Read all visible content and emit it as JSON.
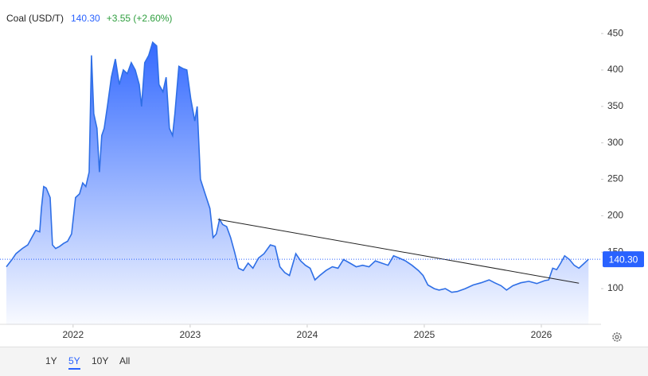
{
  "chart_data": {
    "type": "area",
    "title": "Coal (USD/T)",
    "change": "+3.55 (+2.60%)",
    "color": "#2f6fe6",
    "xlim": [
      2021.43,
      2026.51
    ],
    "xticks": [
      2022,
      2023,
      2024,
      2025,
      2026
    ],
    "ylim": [
      51,
      496
    ],
    "yticks": [
      100,
      150,
      200,
      250,
      300,
      350,
      400,
      450
    ],
    "x": [
      2021.43,
      2021.478,
      2021.512,
      2021.566,
      2021.613,
      2021.647,
      2021.681,
      2021.715,
      2021.729,
      2021.749,
      2021.77,
      2021.804,
      2021.824,
      2021.851,
      2021.885,
      2021.919,
      2021.953,
      2021.987,
      2022.021,
      2022.055,
      2022.082,
      2022.109,
      2022.137,
      2022.157,
      2022.177,
      2022.204,
      2022.225,
      2022.245,
      2022.266,
      2022.293,
      2022.327,
      2022.361,
      2022.395,
      2022.429,
      2022.463,
      2022.497,
      2022.531,
      2022.565,
      2022.585,
      2022.612,
      2022.646,
      2022.68,
      2022.714,
      2022.734,
      2022.768,
      2022.795,
      2022.823,
      2022.85,
      2022.87,
      2022.904,
      2022.938,
      2022.972,
      2023.006,
      2023.04,
      2023.06,
      2023.088,
      2023.128,
      2023.169,
      2023.196,
      2023.223,
      2023.251,
      2023.278,
      2023.312,
      2023.346,
      2023.38,
      2023.414,
      2023.454,
      2023.495,
      2023.536,
      2023.584,
      2023.631,
      2023.685,
      2023.726,
      2023.767,
      2023.808,
      2023.848,
      2023.903,
      2023.944,
      2023.984,
      2024.025,
      2024.066,
      2024.107,
      2024.161,
      2024.215,
      2024.263,
      2024.31,
      2024.365,
      2024.419,
      2024.473,
      2024.528,
      2024.582,
      2024.637,
      2024.691,
      2024.738,
      2024.786,
      2024.84,
      2024.895,
      2024.949,
      2024.99,
      2025.031,
      2025.085,
      2025.126,
      2025.18,
      2025.234,
      2025.282,
      2025.35,
      2025.418,
      2025.486,
      2025.554,
      2025.601,
      2025.656,
      2025.703,
      2025.757,
      2025.825,
      2025.893,
      2025.961,
      2026.029,
      2026.063,
      2026.097,
      2026.131,
      2026.165,
      2026.199,
      2026.24,
      2026.281,
      2026.321,
      2026.362,
      2026.403
    ],
    "series": [
      {
        "name": "Coal",
        "color": "#2f6fe6",
        "values": [
          130,
          140,
          148,
          155,
          160,
          170,
          180,
          178,
          210,
          240,
          238,
          225,
          160,
          155,
          158,
          162,
          165,
          175,
          225,
          230,
          245,
          240,
          260,
          420,
          340,
          320,
          260,
          310,
          320,
          350,
          390,
          415,
          380,
          400,
          395,
          410,
          400,
          380,
          350,
          410,
          420,
          438,
          433,
          380,
          370,
          390,
          320,
          310,
          340,
          405,
          402,
          400,
          360,
          330,
          350,
          250,
          230,
          210,
          170,
          175,
          195,
          188,
          185,
          170,
          150,
          128,
          125,
          135,
          128,
          142,
          148,
          160,
          158,
          130,
          122,
          118,
          148,
          138,
          132,
          128,
          112,
          118,
          125,
          130,
          128,
          140,
          135,
          130,
          132,
          130,
          138,
          135,
          132,
          145,
          142,
          138,
          132,
          125,
          118,
          105,
          100,
          98,
          100,
          95,
          96,
          100,
          105,
          108,
          112,
          108,
          104,
          98,
          104,
          108,
          110,
          107,
          111,
          112,
          128,
          126,
          135,
          145,
          140,
          132,
          128,
          134,
          140.3
        ]
      }
    ],
    "trendline": {
      "x": [
        2023.237,
        2026.321
      ],
      "values": [
        195,
        107.5
      ]
    },
    "last": {
      "value": 140.3,
      "label": "140.30"
    },
    "ranges": [
      "1Y",
      "5Y",
      "10Y",
      "All"
    ],
    "active_range": "5Y"
  }
}
